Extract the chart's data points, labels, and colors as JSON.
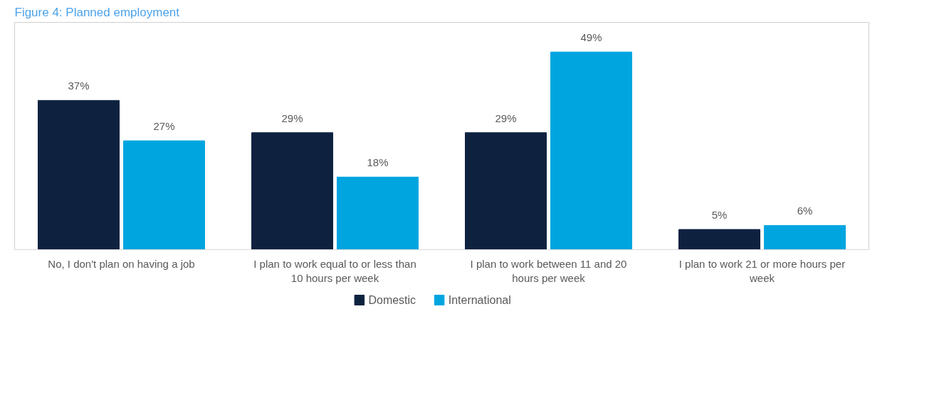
{
  "chart_data": {
    "type": "bar",
    "title": "Figure 4: Planned employment",
    "categories": [
      "No, I don't plan on having a job",
      "I plan to work equal to or less than 10 hours per week",
      "I plan to work between 11 and 20 hours per week",
      "I plan to work 21 or more hours per week"
    ],
    "series": [
      {
        "name": "Domestic",
        "color": "#0e2240",
        "values": [
          37,
          29,
          29,
          5
        ],
        "value_labels": [
          "37%",
          "29%",
          "29%",
          "5%"
        ]
      },
      {
        "name": "International",
        "color": "#00a5e0",
        "values": [
          27,
          18,
          49,
          6
        ],
        "value_labels": [
          "27%",
          "18%",
          "49%",
          "6%"
        ]
      }
    ],
    "legend": "bottom"
  }
}
